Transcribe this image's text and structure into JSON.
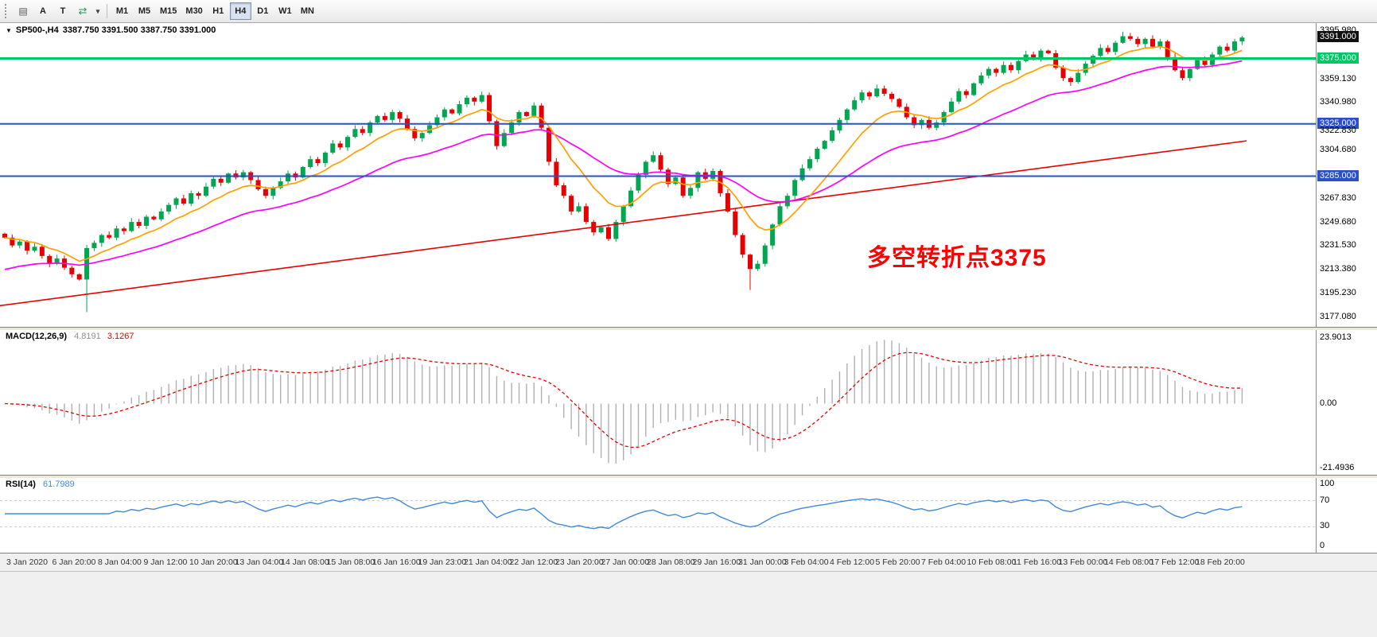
{
  "toolbar": {
    "text_tool": "A",
    "box_tool": "T",
    "objects_icon_glyph": "▤",
    "cycles_icon_glyph": "⇄",
    "caret_glyph": "▾",
    "timeframes": [
      {
        "label": "M1",
        "active": false
      },
      {
        "label": "M5",
        "active": false
      },
      {
        "label": "M15",
        "active": false
      },
      {
        "label": "M30",
        "active": false
      },
      {
        "label": "H1",
        "active": false
      },
      {
        "label": "H4",
        "active": true
      },
      {
        "label": "D1",
        "active": false
      },
      {
        "label": "W1",
        "active": false
      },
      {
        "label": "MN",
        "active": false
      }
    ]
  },
  "chart": {
    "symbol": "SP500-,H4",
    "ohlc_text": "3387.750 3391.500 3387.750 3391.000",
    "expander_icon": "▼",
    "annotation": {
      "text": "多空转折点3375",
      "color": "#FF0000"
    },
    "colors": {
      "up": "#00a650",
      "down": "#e80000",
      "ma_fast": "#ffa000",
      "ma_mid": "#ff00ff",
      "ma_slow": "#e80000",
      "hline_green": "#00c864",
      "hline_blue": "#2a50c8",
      "macd_hist": "#b0b0b0",
      "macd_signal": "#e80000",
      "rsi_line": "#4289d8",
      "level_dash": "#c8c8c8"
    },
    "hlines": [
      {
        "price": 3375,
        "color": "#00c864",
        "width": 3
      },
      {
        "price": 3325,
        "color": "#2a50c8",
        "width": 2
      },
      {
        "price": 3285,
        "color": "#2a50c8",
        "width": 2
      }
    ],
    "price_axis": {
      "min": 3177.08,
      "max": 3395.98,
      "labels": [
        {
          "text": "3395.980",
          "price": 3395.98,
          "style": "plain"
        },
        {
          "text": "3391.000",
          "price": 3391.0,
          "style": "current"
        },
        {
          "text": "3375.000",
          "price": 3375.0,
          "style": "green"
        },
        {
          "text": "3359.130",
          "price": 3359.13,
          "style": "plain"
        },
        {
          "text": "3340.980",
          "price": 3340.98,
          "style": "plain"
        },
        {
          "text": "3325.000",
          "price": 3325.0,
          "style": "blue"
        },
        {
          "text": "3322.830",
          "price": 3319.5,
          "style": "plain"
        },
        {
          "text": "3304.680",
          "price": 3304.68,
          "style": "plain"
        },
        {
          "text": "3285.000",
          "price": 3285.0,
          "style": "blue"
        },
        {
          "text": "3267.830",
          "price": 3267.83,
          "style": "plain"
        },
        {
          "text": "3249.680",
          "price": 3249.68,
          "style": "plain"
        },
        {
          "text": "3231.530",
          "price": 3231.53,
          "style": "plain"
        },
        {
          "text": "3213.380",
          "price": 3213.38,
          "style": "plain"
        },
        {
          "text": "3195.230",
          "price": 3195.23,
          "style": "plain"
        },
        {
          "text": "3177.080",
          "price": 3177.08,
          "style": "plain"
        }
      ]
    }
  },
  "macd_panel": {
    "label": "MACD(12,26,9)",
    "value_main": "4.8191",
    "value_signal": "3.1267",
    "axis_top": "23.9013",
    "axis_zero": "0.00",
    "axis_bottom": "-21.4936"
  },
  "rsi_panel": {
    "label": "RSI(14)",
    "value": "61.7989",
    "axis_top": "100",
    "axis_upper": "70",
    "axis_lower": "30",
    "axis_bottom": "0",
    "levels": [
      70,
      30
    ]
  },
  "time_axis": {
    "labels": [
      "3 Jan 2020",
      "6 Jan 20:00",
      "8 Jan 04:00",
      "9 Jan 12:00",
      "10 Jan 20:00",
      "13 Jan 04:00",
      "14 Jan 08:00",
      "15 Jan 08:00",
      "16 Jan 16:00",
      "19 Jan 23:00",
      "21 Jan 04:00",
      "22 Jan 12:00",
      "23 Jan 20:00",
      "27 Jan 00:00",
      "28 Jan 08:00",
      "29 Jan 16:00",
      "31 Jan 00:00",
      "3 Feb 04:00",
      "4 Feb 12:00",
      "5 Feb 20:00",
      "7 Feb 04:00",
      "10 Feb 08:00",
      "11 Feb 16:00",
      "13 Feb 00:00",
      "14 Feb 08:00",
      "17 Feb 12:00",
      "18 Feb 20:00"
    ]
  },
  "chart_data": {
    "type": "candlestick",
    "symbol": "SP500-",
    "timeframe": "H4",
    "title": "SP500-,H4 3387.750 3391.500 3387.750 3391.000",
    "price_min": 3177.08,
    "price_max": 3395.98,
    "current_bid": 3391.0,
    "support_resistance_levels": [
      3375,
      3325,
      3285
    ],
    "first_open": 3241,
    "closes": [
      3238,
      3232,
      3235,
      3228,
      3231,
      3224,
      3218,
      3222,
      3215,
      3210,
      3206,
      3230,
      3234,
      3240,
      3238,
      3245,
      3243,
      3250,
      3247,
      3254,
      3252,
      3258,
      3263,
      3268,
      3264,
      3272,
      3270,
      3277,
      3283,
      3280,
      3287,
      3284,
      3288,
      3282,
      3275,
      3270,
      3276,
      3281,
      3287,
      3284,
      3292,
      3298,
      3295,
      3303,
      3310,
      3307,
      3315,
      3321,
      3318,
      3326,
      3331,
      3328,
      3334,
      3329,
      3321,
      3314,
      3318,
      3324,
      3330,
      3336,
      3333,
      3340,
      3345,
      3342,
      3347,
      3327,
      3308,
      3318,
      3326,
      3334,
      3331,
      3339,
      3322,
      3296,
      3278,
      3270,
      3258,
      3262,
      3250,
      3242,
      3246,
      3237,
      3250,
      3262,
      3274,
      3286,
      3296,
      3301,
      3290,
      3279,
      3284,
      3270,
      3276,
      3288,
      3283,
      3289,
      3272,
      3258,
      3240,
      3225,
      3214,
      3218,
      3232,
      3248,
      3262,
      3270,
      3282,
      3291,
      3298,
      3306,
      3312,
      3320,
      3328,
      3336,
      3343,
      3349,
      3346,
      3352,
      3348,
      3344,
      3338,
      3330,
      3324,
      3328,
      3322,
      3326,
      3334,
      3342,
      3350,
      3347,
      3356,
      3362,
      3367,
      3364,
      3370,
      3366,
      3373,
      3378,
      3375,
      3381,
      3379,
      3368,
      3360,
      3357,
      3364,
      3371,
      3377,
      3383,
      3380,
      3387,
      3392,
      3390,
      3386,
      3390,
      3384,
      3388,
      3376,
      3366,
      3360,
      3367,
      3374,
      3370,
      3378,
      3384,
      3381,
      3388,
      3391
    ],
    "wick_lows": {
      "11": 3181,
      "100": 3198
    },
    "wick_highs": {
      "150": 3395.5
    },
    "ma_slow_start": 3186,
    "ma_slow_end": 3312,
    "indicators": {
      "macd": {
        "fast": 12,
        "slow": 26,
        "signal": 9,
        "current_main": 4.8191,
        "current_signal": 3.1267,
        "scale_max": 23.9013,
        "scale_min": -21.4936
      },
      "rsi": {
        "period": 14,
        "current": 61.7989,
        "levels": [
          70,
          30
        ]
      }
    }
  }
}
